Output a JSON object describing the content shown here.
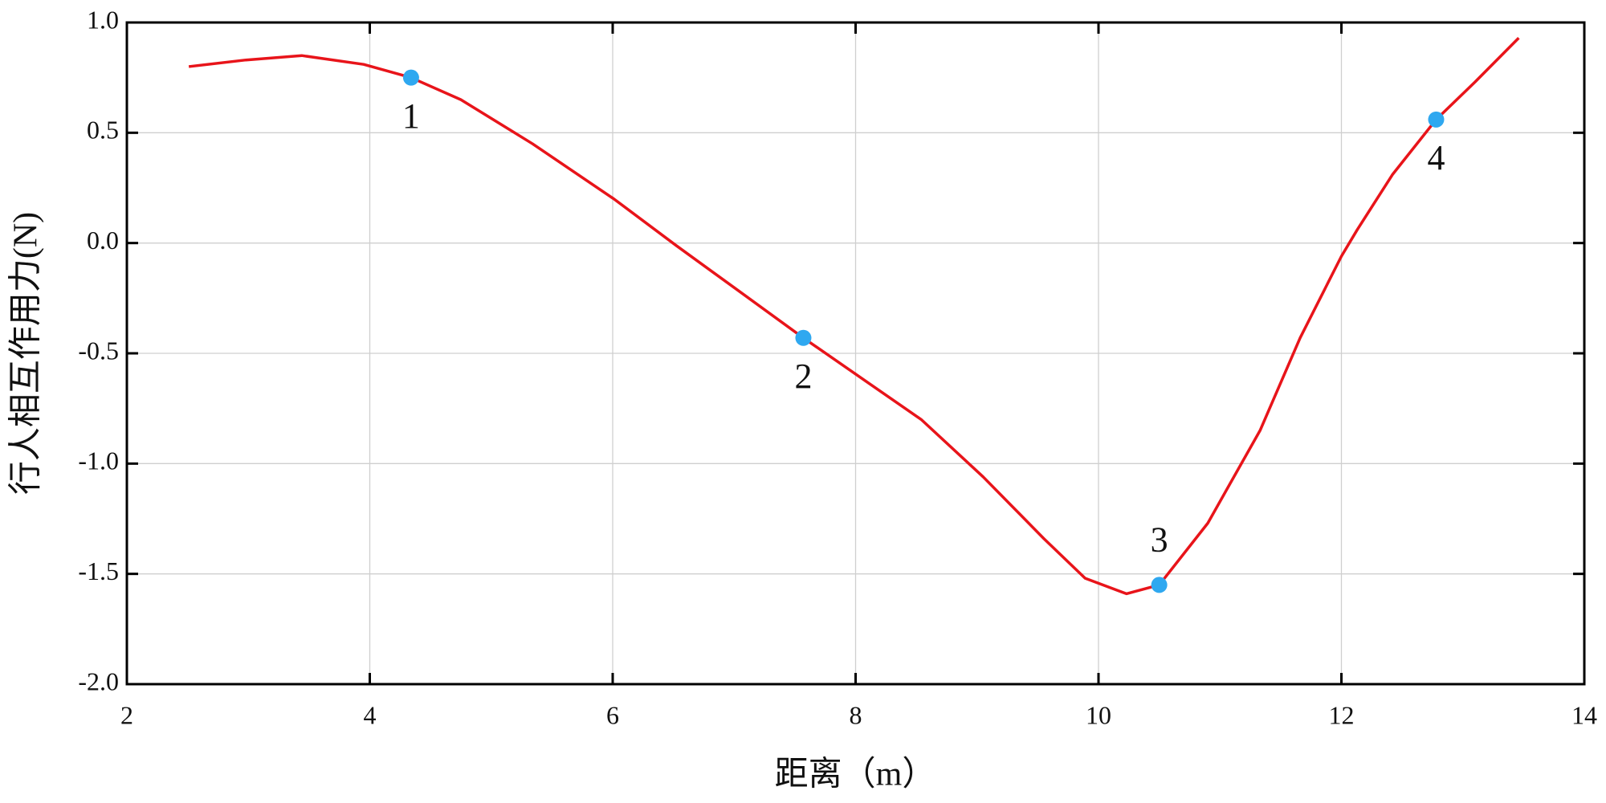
{
  "chart_data": {
    "type": "line",
    "xlabel": "距离（m）",
    "ylabel": "行人相互作用力(N)",
    "xlim": [
      2,
      14
    ],
    "xticks": [
      2,
      4,
      6,
      8,
      10,
      12,
      14
    ],
    "ylim": [
      -2.0,
      1.0
    ],
    "yticks": [
      {
        "value": -2.0,
        "label": "-2.0"
      },
      -1.5,
      {
        "value": -1.0,
        "label": "-1.0"
      },
      -0.5,
      {
        "value": 0.0,
        "label": "0.0"
      },
      0.5,
      {
        "value": 1.0,
        "label": "1.0"
      }
    ],
    "grid": true,
    "series": [
      {
        "color": "#e8141a",
        "x": [
          2.51,
          2.98,
          3.44,
          3.95,
          4.34,
          4.75,
          5.34,
          6.01,
          6.52,
          7.02,
          7.57,
          8.12,
          8.54,
          9.05,
          9.55,
          9.89,
          10.23,
          10.5,
          10.9,
          11.33,
          11.66,
          12.0,
          12.13,
          12.42,
          12.78,
          13.1,
          13.46
        ],
        "values": [
          0.8,
          0.83,
          0.85,
          0.81,
          0.75,
          0.65,
          0.45,
          0.2,
          -0.01,
          -0.21,
          -0.43,
          -0.64,
          -0.8,
          -1.06,
          -1.34,
          -1.52,
          -1.59,
          -1.55,
          -1.27,
          -0.85,
          -0.43,
          -0.06,
          0.06,
          0.31,
          0.56,
          0.73,
          0.93
        ]
      },
      {
        "color": "#2fa8f0",
        "x": [
          4.34,
          7.57,
          10.5,
          12.78
        ],
        "values": [
          0.75,
          -0.43,
          -1.55,
          0.56
        ],
        "labels": [
          "1",
          "2",
          "3",
          "4"
        ]
      }
    ]
  }
}
